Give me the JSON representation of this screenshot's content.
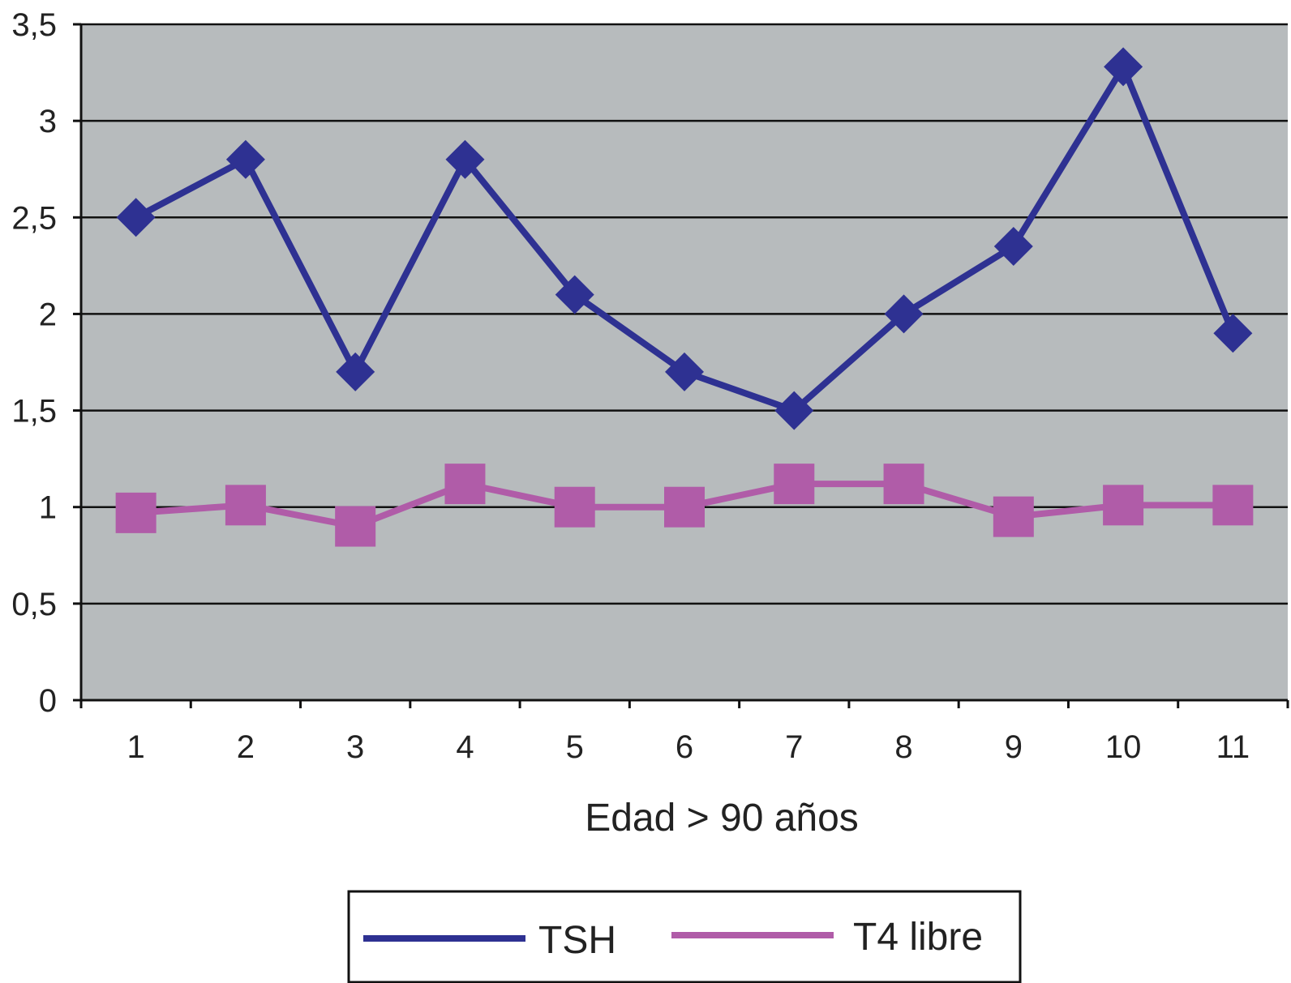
{
  "chart_data": {
    "type": "line",
    "title": "",
    "xlabel": "Edad > 90 años",
    "ylabel": "",
    "categories": [
      "1",
      "2",
      "3",
      "4",
      "5",
      "6",
      "7",
      "8",
      "9",
      "10",
      "11"
    ],
    "ylim": [
      0,
      3.5
    ],
    "yticks": [
      0,
      0.5,
      1,
      1.5,
      2,
      2.5,
      3,
      3.5
    ],
    "ytick_labels": [
      "0",
      "0,5",
      "1",
      "1,5",
      "2",
      "2,5",
      "3",
      "3,5"
    ],
    "grid": true,
    "legend_position": "bottom",
    "plot_background": "#b7bbbd",
    "series": [
      {
        "name": "TSH",
        "marker": "diamond",
        "color": "#2e3192",
        "values": [
          2.5,
          2.8,
          1.7,
          2.8,
          2.1,
          1.7,
          1.5,
          2.0,
          2.35,
          3.28,
          1.9
        ]
      },
      {
        "name": "T4 libre",
        "marker": "square",
        "color": "#b05ca8",
        "values": [
          0.97,
          1.01,
          0.9,
          1.12,
          1.0,
          1.0,
          1.12,
          1.12,
          0.95,
          1.01,
          1.01
        ]
      }
    ]
  }
}
